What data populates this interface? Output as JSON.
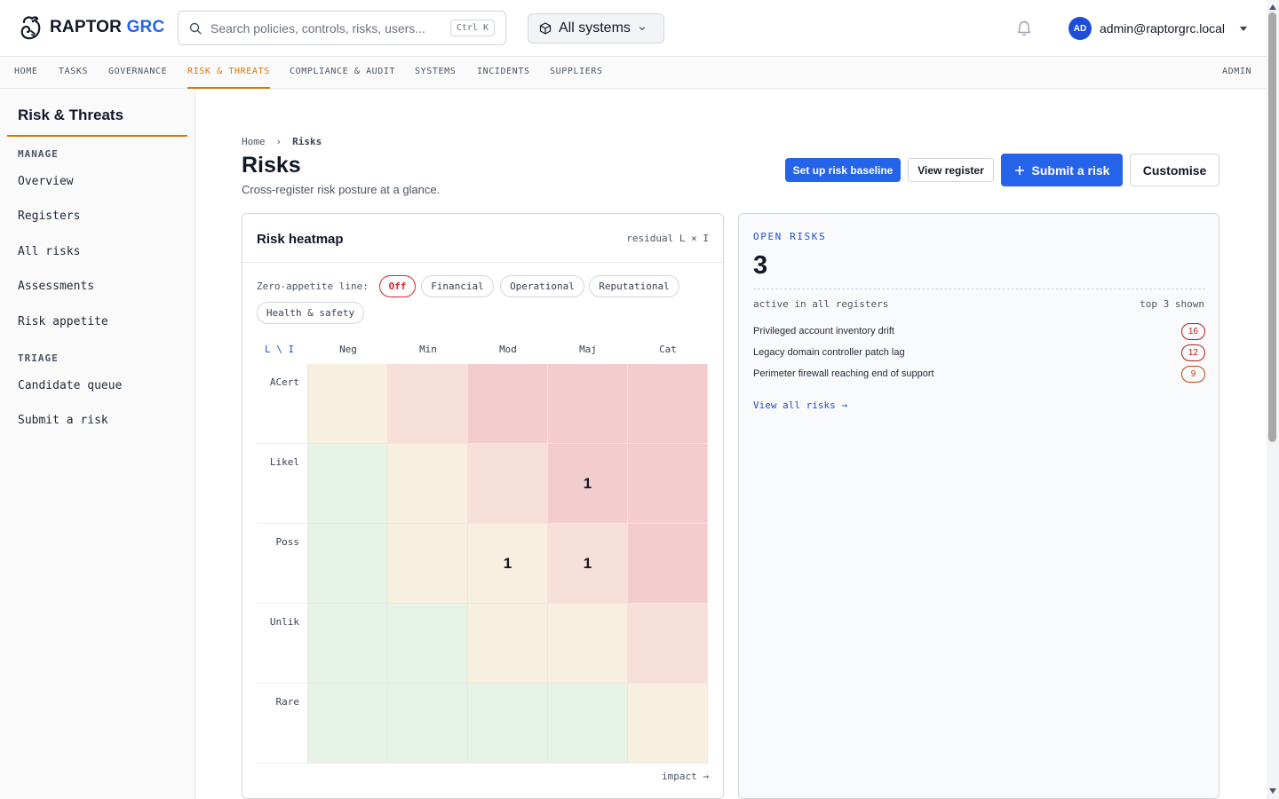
{
  "app": {
    "logo_main": "RAPTOR",
    "logo_accent": "GRC"
  },
  "search": {
    "placeholder": "Search policies, controls, risks, users...",
    "shortcut": "Ctrl K"
  },
  "system_selector": {
    "label": "All systems"
  },
  "user": {
    "initials": "AD",
    "email": "admin@raptorgrc.local"
  },
  "nav": {
    "items": [
      {
        "label": "HOME",
        "active": false
      },
      {
        "label": "TASKS",
        "active": false
      },
      {
        "label": "GOVERNANCE",
        "active": false
      },
      {
        "label": "RISK & THREATS",
        "active": true
      },
      {
        "label": "COMPLIANCE & AUDIT",
        "active": false
      },
      {
        "label": "SYSTEMS",
        "active": false
      },
      {
        "label": "INCIDENTS",
        "active": false
      },
      {
        "label": "SUPPLIERS",
        "active": false
      }
    ],
    "admin": "ADMIN"
  },
  "sidebar": {
    "title": "Risk & Threats",
    "sections": [
      {
        "title": "MANAGE",
        "items": [
          "Overview",
          "Registers",
          "All risks",
          "Assessments",
          "Risk appetite"
        ]
      },
      {
        "title": "TRIAGE",
        "items": [
          "Candidate queue",
          "Submit a risk"
        ]
      }
    ]
  },
  "breadcrumb": {
    "home": "Home",
    "sep": "›",
    "current": "Risks"
  },
  "page": {
    "title": "Risks",
    "subtitle": "Cross-register risk posture at a glance."
  },
  "actions": {
    "baseline": "Set up risk baseline",
    "view_register": "View register",
    "submit": "Submit a risk",
    "customise": "Customise"
  },
  "heatmap": {
    "title": "Risk heatmap",
    "mode": "residual L × I",
    "zero_appetite_label": "Zero-appetite line:",
    "chips": [
      {
        "label": "Off",
        "active": true
      },
      {
        "label": "Financial",
        "active": false
      },
      {
        "label": "Operational",
        "active": false
      },
      {
        "label": "Reputational",
        "active": false
      },
      {
        "label": "Health & safety",
        "active": false
      }
    ],
    "corner": "L \\ I",
    "columns": [
      "Neg",
      "Min",
      "Mod",
      "Maj",
      "Cat"
    ],
    "rows": [
      "ACert",
      "Likel",
      "Poss",
      "Unlik",
      "Rare"
    ],
    "cell_colors": [
      [
        "#f8efe0",
        "#f7dfd9",
        "#f3ccce",
        "#f3ccce",
        "#f3ccce"
      ],
      [
        "#e8f3e7",
        "#f8efe0",
        "#f7dfd9",
        "#f3ccce",
        "#f3ccce"
      ],
      [
        "#e8f3e7",
        "#f8efe0",
        "#f8efe0",
        "#f7dfd9",
        "#f3ccce"
      ],
      [
        "#e8f3e7",
        "#e8f3e7",
        "#f8efe0",
        "#f8efe0",
        "#f7dfd9"
      ],
      [
        "#e8f3e7",
        "#e8f3e7",
        "#e8f3e7",
        "#e8f3e7",
        "#f8efe0"
      ]
    ],
    "counts": [
      [
        "",
        "",
        "",
        "",
        ""
      ],
      [
        "",
        "",
        "",
        "1",
        ""
      ],
      [
        "",
        "",
        "1",
        "1",
        ""
      ],
      [
        "",
        "",
        "",
        "",
        ""
      ],
      [
        "",
        "",
        "",
        "",
        ""
      ]
    ],
    "axis_label": "impact →"
  },
  "open_risks": {
    "label": "OPEN RISKS",
    "count": "3",
    "meta_left": "active in all registers",
    "meta_right": "top 3 shown",
    "items": [
      {
        "name": "Privileged account inventory drift",
        "score": "16",
        "level": "high"
      },
      {
        "name": "Legacy domain controller patch lag",
        "score": "12",
        "level": "high"
      },
      {
        "name": "Perimeter firewall reaching end of support",
        "score": "9",
        "level": "medium"
      }
    ],
    "view_all": "View all risks →"
  }
}
